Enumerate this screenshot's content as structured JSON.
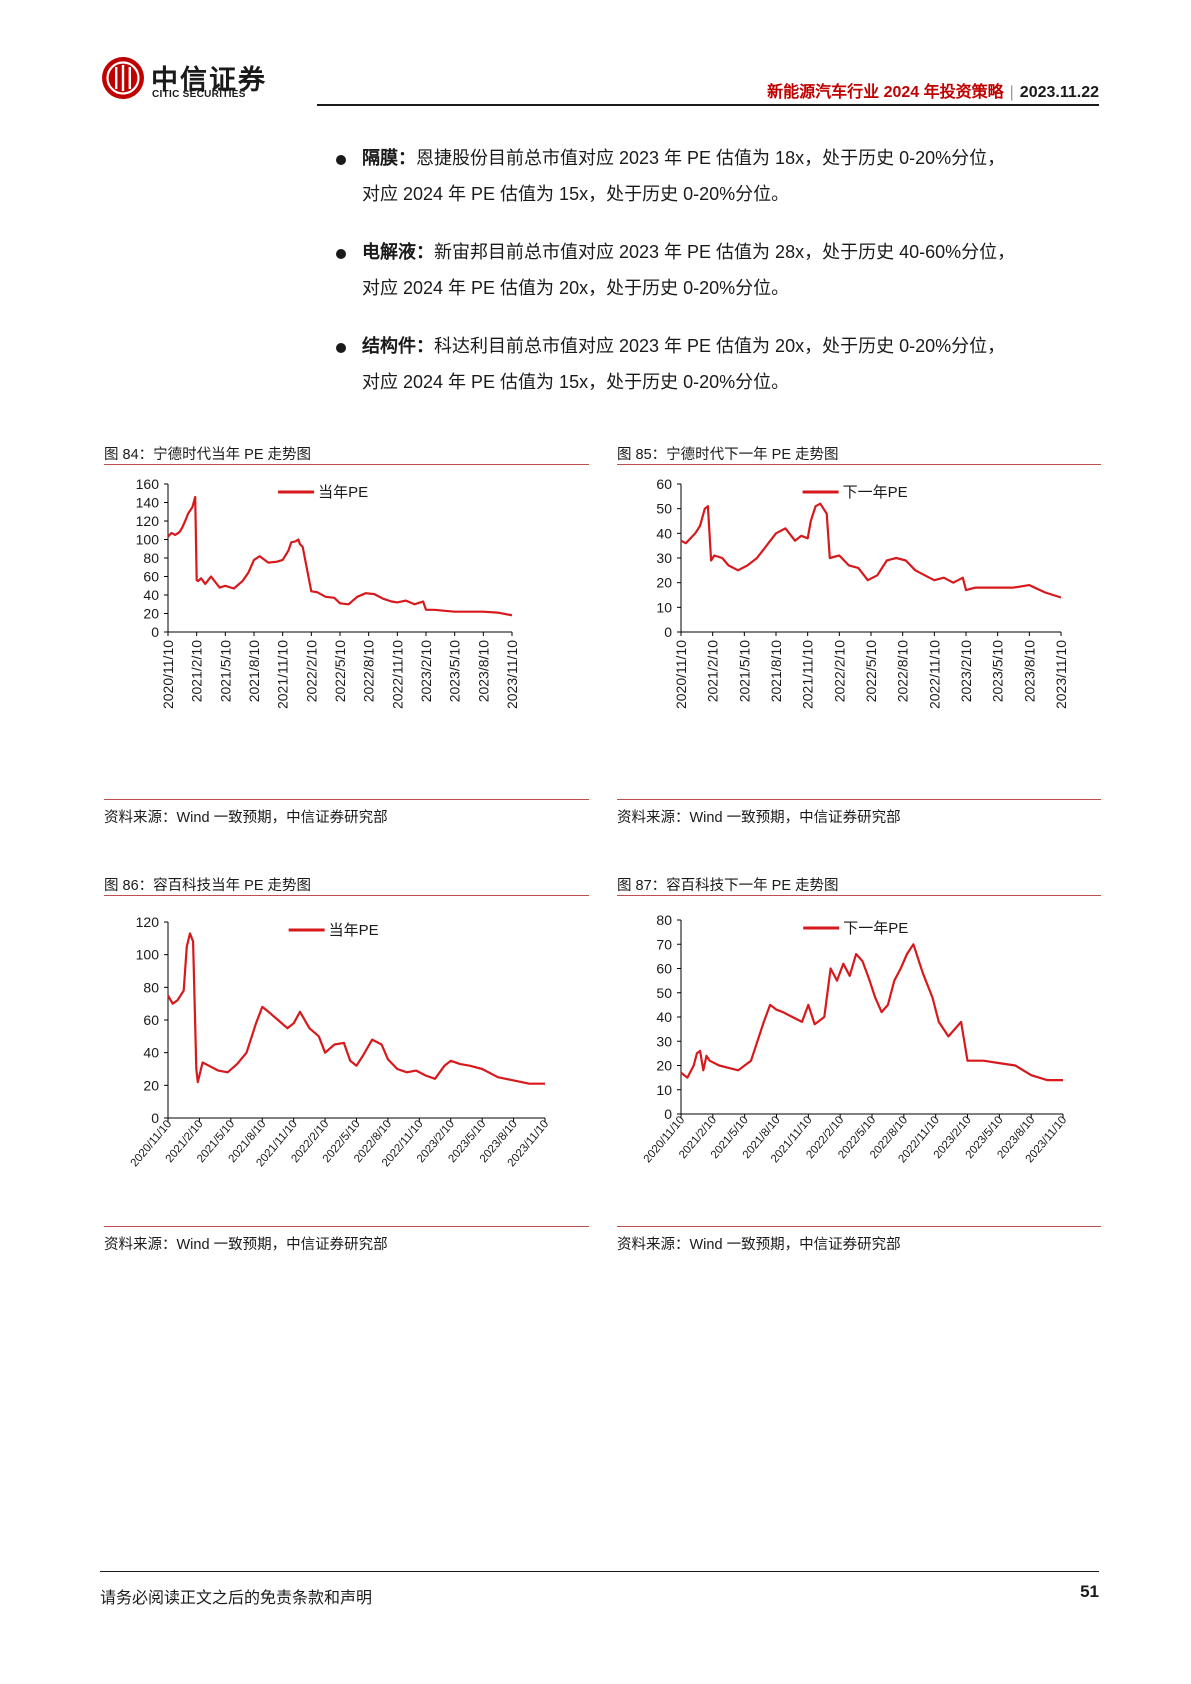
{
  "header": {
    "brand_cn": "中信证券",
    "brand_en": "CITIC SECURITIES",
    "report_title": "新能源汽车行业 2024 年投资策略",
    "date": "2023.11.22"
  },
  "bullets": [
    {
      "label": "隔膜：",
      "line1": "恩捷股份目前总市值对应 2023 年 PE 估值为 18x，处于历史 0-20%分位，",
      "line2": "对应 2024 年 PE 估值为 15x，处于历史 0-20%分位。"
    },
    {
      "label": "电解液：",
      "line1": "新宙邦目前总市值对应 2023 年 PE 估值为 28x，处于历史 40-60%分位，",
      "line2": "对应 2024 年 PE 估值为 20x，处于历史 0-20%分位。"
    },
    {
      "label": "结构件：",
      "line1": "科达利目前总市值对应 2023 年 PE 估值为 20x，处于历史 0-20%分位，",
      "line2": "对应 2024 年 PE 估值为 15x，处于历史 0-20%分位。"
    }
  ],
  "footer": {
    "disclaimer": "请务必阅读正文之后的免责条款和声明",
    "page_number": "51"
  },
  "colors": {
    "series": "#d7191c",
    "accent": "#c00000",
    "rule": "#c0504d"
  },
  "chart_data": [
    {
      "type": "line",
      "caption": "图 84：宁德时代当年 PE 走势图",
      "source": "资料来源：Wind 一致预期，中信证券研究部",
      "x_ticks": [
        "2020/11/10",
        "2021/2/10",
        "2021/5/10",
        "2021/8/10",
        "2021/11/10",
        "2022/2/10",
        "2022/5/10",
        "2022/8/10",
        "2022/11/10",
        "2023/2/10",
        "2023/5/10",
        "2023/8/10",
        "2023/11/10"
      ],
      "ylim": [
        0,
        160
      ],
      "y_ticks": [
        0,
        20,
        40,
        60,
        80,
        100,
        120,
        140,
        160
      ],
      "legend_position": "top-center",
      "series": [
        {
          "name": "当年PE",
          "x": [
            0,
            0.12,
            0.25,
            0.4,
            0.5,
            0.6,
            0.7,
            0.85,
            0.95,
            1.0,
            1.05,
            1.15,
            1.3,
            1.5,
            1.8,
            2.0,
            2.3,
            2.6,
            2.8,
            3.0,
            3.2,
            3.5,
            3.8,
            4.0,
            4.2,
            4.3,
            4.45,
            4.55,
            4.6,
            4.7,
            5.0,
            5.2,
            5.5,
            5.8,
            6.0,
            6.3,
            6.6,
            6.9,
            7.2,
            7.5,
            7.8,
            8.0,
            8.3,
            8.6,
            8.9,
            9.0,
            9.3,
            9.6,
            10.0,
            10.5,
            11.0,
            11.5,
            12.0
          ],
          "values": [
            103,
            107,
            105,
            108,
            113,
            120,
            128,
            135,
            146,
            56,
            55,
            58,
            52,
            60,
            48,
            50,
            47,
            55,
            64,
            78,
            82,
            75,
            76,
            78,
            88,
            97,
            98,
            100,
            95,
            92,
            44,
            43,
            38,
            37,
            31,
            30,
            38,
            42,
            41,
            36,
            33,
            32,
            34,
            30,
            33,
            24,
            24,
            23,
            22,
            22,
            22,
            21,
            18
          ]
        }
      ]
    },
    {
      "type": "line",
      "caption": "图 85：宁德时代下一年 PE 走势图",
      "source": "资料来源：Wind 一致预期，中信证券研究部",
      "x_ticks": [
        "2020/11/10",
        "2021/2/10",
        "2021/5/10",
        "2021/8/10",
        "2021/11/10",
        "2022/2/10",
        "2022/5/10",
        "2022/8/10",
        "2022/11/10",
        "2023/2/10",
        "2023/5/10",
        "2023/8/10",
        "2023/11/10"
      ],
      "ylim": [
        0,
        60
      ],
      "y_ticks": [
        0,
        10,
        20,
        30,
        40,
        50,
        60
      ],
      "legend_position": "top-center",
      "series": [
        {
          "name": "下一年PE",
          "x": [
            0,
            0.15,
            0.3,
            0.45,
            0.6,
            0.75,
            0.85,
            0.95,
            1.05,
            1.3,
            1.5,
            1.8,
            2.1,
            2.4,
            2.7,
            3.0,
            3.3,
            3.6,
            3.8,
            4.0,
            4.1,
            4.25,
            4.4,
            4.5,
            4.6,
            4.7,
            5.0,
            5.3,
            5.6,
            5.9,
            6.2,
            6.5,
            6.8,
            7.1,
            7.4,
            7.7,
            8.0,
            8.3,
            8.6,
            8.9,
            9.0,
            9.3,
            9.6,
            10.0,
            10.5,
            11.0,
            11.5,
            12.0
          ],
          "values": [
            37,
            36,
            38,
            40,
            43,
            50,
            51,
            29,
            31,
            30,
            27,
            25,
            27,
            30,
            35,
            40,
            42,
            37,
            39,
            38,
            45,
            51,
            52,
            50,
            48,
            30,
            31,
            27,
            26,
            21,
            23,
            29,
            30,
            29,
            25,
            23,
            21,
            22,
            20,
            22,
            17,
            18,
            18,
            18,
            18,
            19,
            16,
            14
          ]
        }
      ]
    },
    {
      "type": "line",
      "caption": "图 86：容百科技当年 PE 走势图",
      "source": "资料来源：Wind 一致预期，中信证券研究部",
      "x_ticks": [
        "2020/11/10",
        "2021/2/10",
        "2021/5/10",
        "2021/8/10",
        "2021/11/10",
        "2022/2/10",
        "2022/5/10",
        "2022/8/10",
        "2022/11/10",
        "2023/2/10",
        "2023/5/10",
        "2023/8/10",
        "2023/11/10"
      ],
      "ylim": [
        0,
        120
      ],
      "y_ticks": [
        0,
        20,
        40,
        60,
        80,
        100,
        120
      ],
      "legend_position": "top-center",
      "series": [
        {
          "name": "当年PE",
          "x": [
            0,
            0.15,
            0.3,
            0.5,
            0.6,
            0.7,
            0.8,
            0.9,
            0.95,
            1.1,
            1.3,
            1.6,
            1.9,
            2.2,
            2.5,
            2.8,
            3.0,
            3.2,
            3.5,
            3.8,
            4.0,
            4.2,
            4.5,
            4.8,
            5.0,
            5.3,
            5.6,
            5.8,
            6.0,
            6.2,
            6.5,
            6.8,
            7.0,
            7.3,
            7.6,
            7.9,
            8.2,
            8.5,
            8.8,
            9.0,
            9.3,
            9.6,
            10.0,
            10.5,
            11.0,
            11.5,
            12.0
          ],
          "values": [
            75,
            70,
            72,
            78,
            105,
            113,
            108,
            30,
            22,
            34,
            32,
            29,
            28,
            33,
            40,
            58,
            68,
            65,
            60,
            55,
            58,
            65,
            55,
            50,
            40,
            45,
            46,
            35,
            32,
            38,
            48,
            45,
            36,
            30,
            28,
            29,
            26,
            24,
            32,
            35,
            33,
            32,
            30,
            25,
            23,
            21,
            21
          ]
        }
      ]
    },
    {
      "type": "line",
      "caption": "图 87：容百科技下一年 PE 走势图",
      "source": "资料来源：Wind 一致预期，中信证券研究部",
      "x_ticks": [
        "2020/11/10",
        "2021/2/10",
        "2021/5/10",
        "2021/8/10",
        "2021/11/10",
        "2022/2/10",
        "2022/5/10",
        "2022/8/10",
        "2022/11/10",
        "2023/2/10",
        "2023/5/10",
        "2023/8/10",
        "2023/11/10"
      ],
      "ylim": [
        0,
        80
      ],
      "y_ticks": [
        0,
        10,
        20,
        30,
        40,
        50,
        60,
        70,
        80
      ],
      "legend_position": "top-center",
      "series": [
        {
          "name": "下一年PE",
          "x": [
            0,
            0.2,
            0.4,
            0.5,
            0.6,
            0.7,
            0.8,
            0.9,
            1.2,
            1.5,
            1.8,
            2.2,
            2.4,
            2.6,
            2.8,
            3.0,
            3.2,
            3.5,
            3.8,
            4.0,
            4.2,
            4.5,
            4.7,
            4.9,
            5.1,
            5.3,
            5.5,
            5.7,
            5.9,
            6.1,
            6.3,
            6.5,
            6.7,
            6.9,
            7.1,
            7.3,
            7.6,
            7.9,
            8.1,
            8.4,
            8.6,
            8.8,
            9.0,
            9.5,
            10.0,
            10.5,
            11.0,
            11.5,
            12.0
          ],
          "values": [
            17,
            15,
            20,
            25,
            26,
            18,
            24,
            22,
            20,
            19,
            18,
            22,
            30,
            38,
            45,
            43,
            42,
            40,
            38,
            45,
            37,
            40,
            60,
            55,
            62,
            57,
            66,
            63,
            56,
            48,
            42,
            45,
            55,
            60,
            66,
            70,
            58,
            48,
            38,
            32,
            35,
            38,
            22,
            22,
            21,
            20,
            16,
            14,
            14
          ]
        }
      ]
    }
  ]
}
